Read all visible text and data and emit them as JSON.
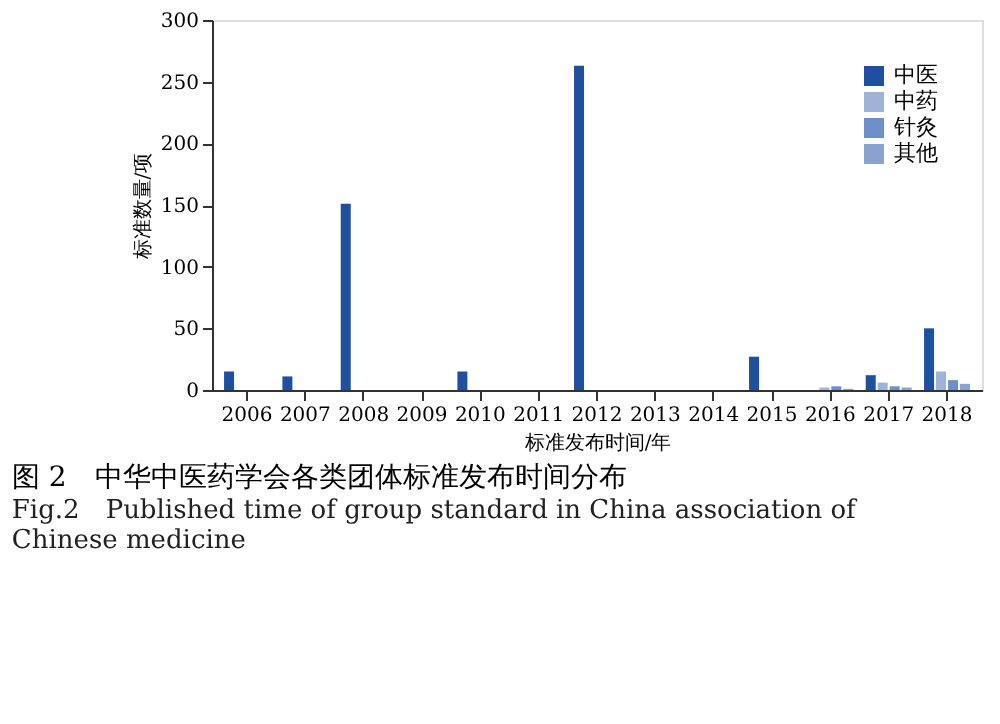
{
  "chart_data": {
    "type": "bar",
    "xlabel": "标准发布时间/年",
    "ylabel": "标准数量/项",
    "categories": [
      "2006",
      "2007",
      "2008",
      "2009",
      "2010",
      "2011",
      "2012",
      "2013",
      "2014",
      "2015",
      "2016",
      "2017",
      "2018"
    ],
    "series": [
      {
        "name": "中医",
        "color": "#1f4f9e",
        "values": [
          15,
          11,
          151,
          0,
          15,
          0,
          263,
          0,
          0,
          27,
          0,
          12,
          50
        ]
      },
      {
        "name": "中药",
        "color": "#9fb3d6",
        "values": [
          0,
          0,
          0,
          0,
          0,
          0,
          0,
          0,
          0,
          0,
          2,
          6,
          15
        ]
      },
      {
        "name": "针灸",
        "color": "#6f8fc8",
        "values": [
          0,
          0,
          0,
          0,
          0,
          0,
          0,
          0,
          0,
          0,
          3,
          3,
          8
        ]
      },
      {
        "name": "其他",
        "color": "#8aa2cc",
        "values": [
          0,
          0,
          0,
          0,
          0,
          0,
          0,
          0,
          0,
          0,
          1,
          2,
          5
        ]
      }
    ],
    "ylim": [
      0,
      300
    ],
    "yticks": [
      0,
      50,
      100,
      150,
      200,
      250,
      300
    ],
    "grid": false,
    "legend": "top right",
    "annotations": [
      "图 2　中华中医药学会各类团体标准发布时间分布",
      "Fig.2　Published time of group standard in China association of Chinese medicine"
    ]
  }
}
